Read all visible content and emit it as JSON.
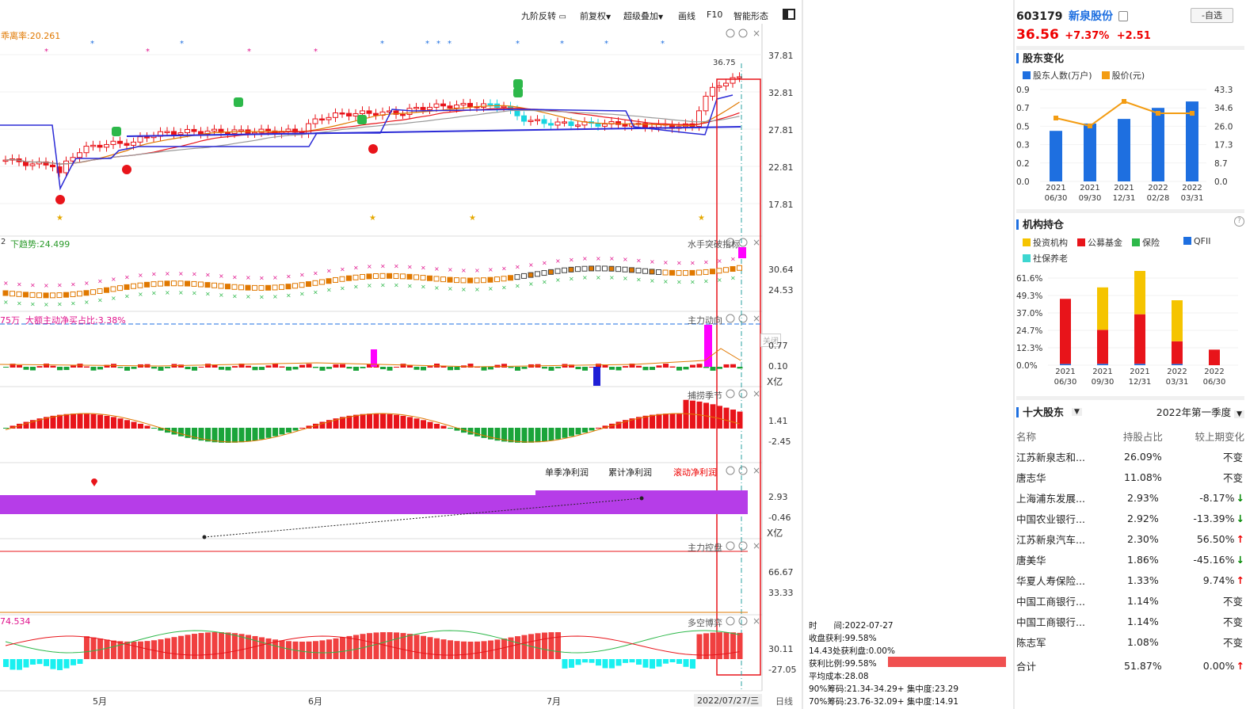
{
  "toolbar": {
    "items": [
      "九阶反转",
      "前复权",
      "超级叠加",
      "画线",
      "F10",
      "智能形态"
    ]
  },
  "stock": {
    "code": "603179",
    "name": "新泉股份",
    "price": "36.56",
    "pct": "+7.37%",
    "chg": "+2.51",
    "fav_label": "-自选"
  },
  "panels": {
    "p1_label": "乖离率:20.261",
    "p1_price_max": "36.75",
    "p1_axis": [
      "37.81",
      "32.81",
      "27.81",
      "22.81",
      "17.81"
    ],
    "p2_label": "下趋势:24.499",
    "p2_prefix": "2",
    "p2_name": "水手突破指标",
    "p2_axis": [
      "30.64",
      "24.53"
    ],
    "p3_prefix": "75万",
    "p3_label": "大额主动净买占比:3.38%",
    "p3_name": "主力动向",
    "p3_axis": [
      "0.77",
      "0.10"
    ],
    "p3_unit": "X亿",
    "p3_close": "关闭",
    "p4_name": "捕捞季节",
    "p4_axis": [
      "1.41",
      "-2.45"
    ],
    "p5_tabs": [
      "单季净利润",
      "累计净利润",
      "滚动净利润"
    ],
    "p5_axis": [
      "2.93",
      "-0.46"
    ],
    "p5_unit": "X亿",
    "p6_name": "主力控盘",
    "p6_axis": [
      "66.67",
      "33.33"
    ],
    "p7_label": "74.534",
    "p7_name": "多空博弈",
    "p7_axis": [
      "30.11",
      "-27.05"
    ]
  },
  "xaxis": {
    "months": [
      "5月",
      "6月",
      "7月"
    ],
    "cursor_date": "2022/07/27/三",
    "period": "日线"
  },
  "chips": {
    "lines": [
      "时　　间:2022-07-27",
      "收盘获利:99.58%",
      "14.43处获利盘:0.00%",
      "获利比例:99.58%",
      "平均成本:28.08",
      "90%筹码:21.34-34.29+ 集中度:23.29",
      "70%筹码:23.76-32.09+ 集中度:14.91"
    ]
  },
  "shareholder_change": {
    "title": "股东变化",
    "legend": [
      "股东人数(万户)",
      "股价(元)"
    ],
    "colors": {
      "bar": "#1e6fe0",
      "line": "#f39c12"
    },
    "left_axis": [
      "0.9",
      "0.7",
      "0.5",
      "0.3",
      "0.2",
      "0.0"
    ],
    "right_axis": [
      "43.3",
      "34.6",
      "26.0",
      "17.3",
      "8.7",
      "0.0"
    ],
    "dates": [
      [
        "2021",
        "06/30"
      ],
      [
        "2021",
        "09/30"
      ],
      [
        "2021",
        "12/31"
      ],
      [
        "2022",
        "02/28"
      ],
      [
        "2022",
        "03/31"
      ]
    ]
  },
  "institutions": {
    "title": "机构持仓",
    "legend": [
      "投资机构",
      "公募基金",
      "保险",
      "QFII",
      "社保养老"
    ],
    "colors": [
      "#f5c400",
      "#e8141a",
      "#2db84a",
      "#1e6fe0",
      "#3dd6d0"
    ],
    "axis": [
      "61.6%",
      "49.3%",
      "37.0%",
      "24.7%",
      "12.3%",
      "0.0%"
    ],
    "dates": [
      [
        "2021",
        "06/30"
      ],
      [
        "2021",
        "09/30"
      ],
      [
        "2021",
        "12/31"
      ],
      [
        "2022",
        "03/31"
      ],
      [
        "2022",
        "06/30"
      ]
    ]
  },
  "top10": {
    "title": "十大股东",
    "period": "2022年第一季度",
    "headers": [
      "名称",
      "持股占比",
      "较上期变化"
    ],
    "rows": [
      {
        "name": "江苏新泉志和...",
        "pct": "26.09%",
        "chg": "不变",
        "dir": ""
      },
      {
        "name": "唐志华",
        "pct": "11.08%",
        "chg": "不变",
        "dir": ""
      },
      {
        "name": "上海浦东发展...",
        "pct": "2.93%",
        "chg": "-8.17%",
        "dir": "↓"
      },
      {
        "name": "中国农业银行...",
        "pct": "2.92%",
        "chg": "-13.39%",
        "dir": "↓"
      },
      {
        "name": "江苏新泉汽车...",
        "pct": "2.30%",
        "chg": "56.50%",
        "dir": "↑"
      },
      {
        "name": "唐美华",
        "pct": "1.86%",
        "chg": "-45.16%",
        "dir": "↓"
      },
      {
        "name": "华夏人寿保险...",
        "pct": "1.33%",
        "chg": "9.74%",
        "dir": "↑"
      },
      {
        "name": "中国工商银行...",
        "pct": "1.14%",
        "chg": "不变",
        "dir": ""
      },
      {
        "name": "中国工商银行...",
        "pct": "1.14%",
        "chg": "不变",
        "dir": ""
      },
      {
        "name": "陈志军",
        "pct": "1.08%",
        "chg": "不变",
        "dir": ""
      }
    ],
    "total": {
      "name": "合计",
      "pct": "51.87%",
      "chg": "0.00%",
      "dir": "↑"
    }
  }
}
